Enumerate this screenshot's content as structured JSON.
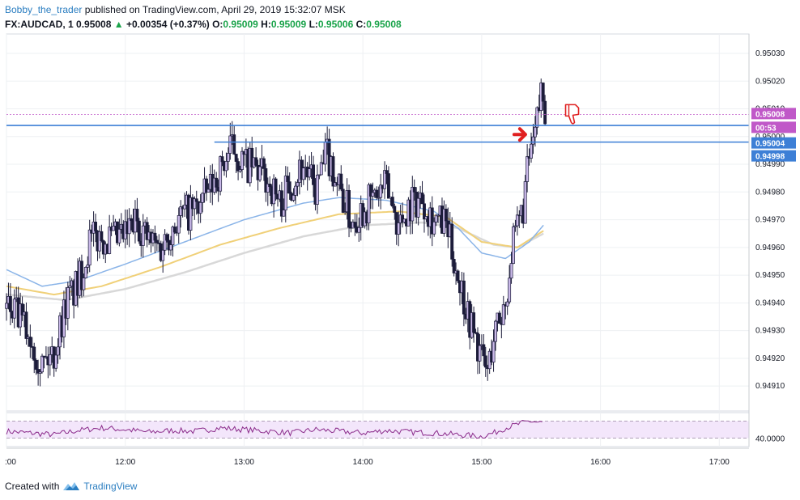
{
  "header": {
    "author": "Bobby_the_trader",
    "published": "published on TradingView.com, April 29, 2019 15:32:07 MSK",
    "symbol": "FX:AUDCAD, 1",
    "price": "0.95008",
    "change": "+0.00354 (+0.37%)",
    "o_label": "O:",
    "o_value": "0.95009",
    "h_label": "H:",
    "h_value": "0.95009",
    "l_label": "L:",
    "l_value": "0.95006",
    "c_label": "C:",
    "c_value": "0.95008"
  },
  "footer": {
    "created_with": "Created with",
    "brand": "TradingView"
  },
  "colors": {
    "up_text": "#1aa34a",
    "candle_dark": "#1c1c3a",
    "candle_light": "#c9b8e8",
    "ema_fast": "#8ab4e8",
    "ema_mid": "#f0d078",
    "ema_slow": "#d8d8d8",
    "hline": "#3d7fd6",
    "price_tag": "#c058c8",
    "level_tag": "#3d7fd6",
    "rsi_line": "#8a2a8a",
    "rsi_band": "#f3e6fb",
    "annotation_arrow": "#e02020"
  },
  "icons": [
    "thumbs-down-icon",
    "right-arrow-icon",
    "tradingview-logo-icon"
  ],
  "chart_data": {
    "type": "candlestick",
    "xlabel": "",
    "ylabel": "",
    "x_ticks": [
      ":00",
      "12:00",
      "13:00",
      "14:00",
      "15:00",
      "16:00",
      "17:00"
    ],
    "y_ticks": [
      "0.95030",
      "0.95020",
      "0.95010",
      "0.95000",
      "0.94990",
      "0.94980",
      "0.94970",
      "0.94960",
      "0.94950",
      "0.94940",
      "0.94930",
      "0.94920",
      "0.94910"
    ],
    "ylim": [
      0.94901,
      0.95037
    ],
    "xlim_hours": [
      11.0,
      17.25
    ],
    "price_labels": {
      "last_price": "0.95008",
      "countdown": "00:53",
      "level_upper": "0.95004",
      "level_lower": "0.94998"
    },
    "horizontal_levels": [
      0.95004,
      0.94998
    ],
    "annotations": [
      {
        "type": "arrow",
        "x_hour": 15.45,
        "y": 0.94999
      },
      {
        "type": "thumbs-down",
        "x_hour": 15.72,
        "y": 0.95008
      }
    ],
    "price_path": [
      [
        11.0,
        0.94938
      ],
      [
        11.1,
        0.94935
      ],
      [
        11.2,
        0.94928
      ],
      [
        11.3,
        0.94918
      ],
      [
        11.4,
        0.94922
      ],
      [
        11.5,
        0.9494
      ],
      [
        11.6,
        0.94946
      ],
      [
        11.7,
        0.94962
      ],
      [
        11.8,
        0.94964
      ],
      [
        11.9,
        0.94962
      ],
      [
        12.0,
        0.94964
      ],
      [
        12.1,
        0.9497
      ],
      [
        12.2,
        0.94962
      ],
      [
        12.3,
        0.9496
      ],
      [
        12.4,
        0.94968
      ],
      [
        12.5,
        0.94972
      ],
      [
        12.6,
        0.94974
      ],
      [
        12.7,
        0.9498
      ],
      [
        12.8,
        0.94988
      ],
      [
        12.9,
        0.94996
      ],
      [
        13.0,
        0.9499
      ],
      [
        13.1,
        0.94988
      ],
      [
        13.2,
        0.94984
      ],
      [
        13.3,
        0.94976
      ],
      [
        13.4,
        0.94984
      ],
      [
        13.5,
        0.9499
      ],
      [
        13.6,
        0.9498
      ],
      [
        13.7,
        0.94994
      ],
      [
        13.8,
        0.94982
      ],
      [
        13.9,
        0.9497
      ],
      [
        14.0,
        0.94974
      ],
      [
        14.1,
        0.94978
      ],
      [
        14.2,
        0.94982
      ],
      [
        14.3,
        0.94968
      ],
      [
        14.4,
        0.94976
      ],
      [
        14.5,
        0.94978
      ],
      [
        14.6,
        0.9497
      ],
      [
        14.7,
        0.94968
      ],
      [
        14.8,
        0.9495
      ],
      [
        14.9,
        0.94934
      ],
      [
        15.0,
        0.9492
      ],
      [
        15.05,
        0.94915
      ],
      [
        15.1,
        0.94928
      ],
      [
        15.2,
        0.9494
      ],
      [
        15.25,
        0.94958
      ],
      [
        15.3,
        0.94966
      ],
      [
        15.35,
        0.94975
      ],
      [
        15.4,
        0.94992
      ],
      [
        15.45,
        0.95
      ],
      [
        15.5,
        0.95016
      ],
      [
        15.55,
        0.95008
      ]
    ],
    "ema_fast": [
      [
        11.0,
        0.94952
      ],
      [
        11.3,
        0.94946
      ],
      [
        11.6,
        0.94948
      ],
      [
        12.0,
        0.94954
      ],
      [
        12.5,
        0.94962
      ],
      [
        13.0,
        0.9497
      ],
      [
        13.5,
        0.94976
      ],
      [
        13.8,
        0.94978
      ],
      [
        14.2,
        0.94977
      ],
      [
        14.6,
        0.94973
      ],
      [
        14.8,
        0.94967
      ],
      [
        15.0,
        0.94958
      ],
      [
        15.2,
        0.94956
      ],
      [
        15.4,
        0.94962
      ],
      [
        15.52,
        0.94968
      ]
    ],
    "ema_mid": [
      [
        11.0,
        0.94946
      ],
      [
        11.4,
        0.94943
      ],
      [
        11.8,
        0.94946
      ],
      [
        12.3,
        0.94953
      ],
      [
        12.8,
        0.94961
      ],
      [
        13.3,
        0.94967
      ],
      [
        13.8,
        0.94972
      ],
      [
        14.3,
        0.94973
      ],
      [
        14.7,
        0.94971
      ],
      [
        15.0,
        0.94962
      ],
      [
        15.3,
        0.9496
      ],
      [
        15.52,
        0.94966
      ]
    ],
    "ema_slow": [
      [
        11.0,
        0.94943
      ],
      [
        11.5,
        0.94941
      ],
      [
        12.0,
        0.94945
      ],
      [
        12.5,
        0.94951
      ],
      [
        13.0,
        0.94958
      ],
      [
        13.5,
        0.94964
      ],
      [
        14.0,
        0.94968
      ],
      [
        14.5,
        0.94969
      ],
      [
        14.8,
        0.94967
      ],
      [
        15.1,
        0.94961
      ],
      [
        15.3,
        0.9496
      ],
      [
        15.52,
        0.94965
      ]
    ],
    "rsi": {
      "label": "40.0000",
      "ylim": [
        30,
        70
      ],
      "band": [
        40,
        60
      ],
      "values": [
        [
          11.0,
          48
        ],
        [
          11.2,
          46
        ],
        [
          11.4,
          44
        ],
        [
          11.6,
          49
        ],
        [
          11.8,
          52
        ],
        [
          12.0,
          50
        ],
        [
          12.2,
          47
        ],
        [
          12.4,
          49
        ],
        [
          12.6,
          48
        ],
        [
          12.8,
          52
        ],
        [
          13.0,
          50
        ],
        [
          13.2,
          48
        ],
        [
          13.4,
          46
        ],
        [
          13.6,
          50
        ],
        [
          13.8,
          48
        ],
        [
          14.0,
          46
        ],
        [
          14.2,
          49
        ],
        [
          14.4,
          47
        ],
        [
          14.6,
          46
        ],
        [
          14.8,
          44
        ],
        [
          15.0,
          42
        ],
        [
          15.1,
          46
        ],
        [
          15.2,
          52
        ],
        [
          15.3,
          56
        ],
        [
          15.4,
          60
        ],
        [
          15.5,
          58
        ]
      ]
    }
  }
}
